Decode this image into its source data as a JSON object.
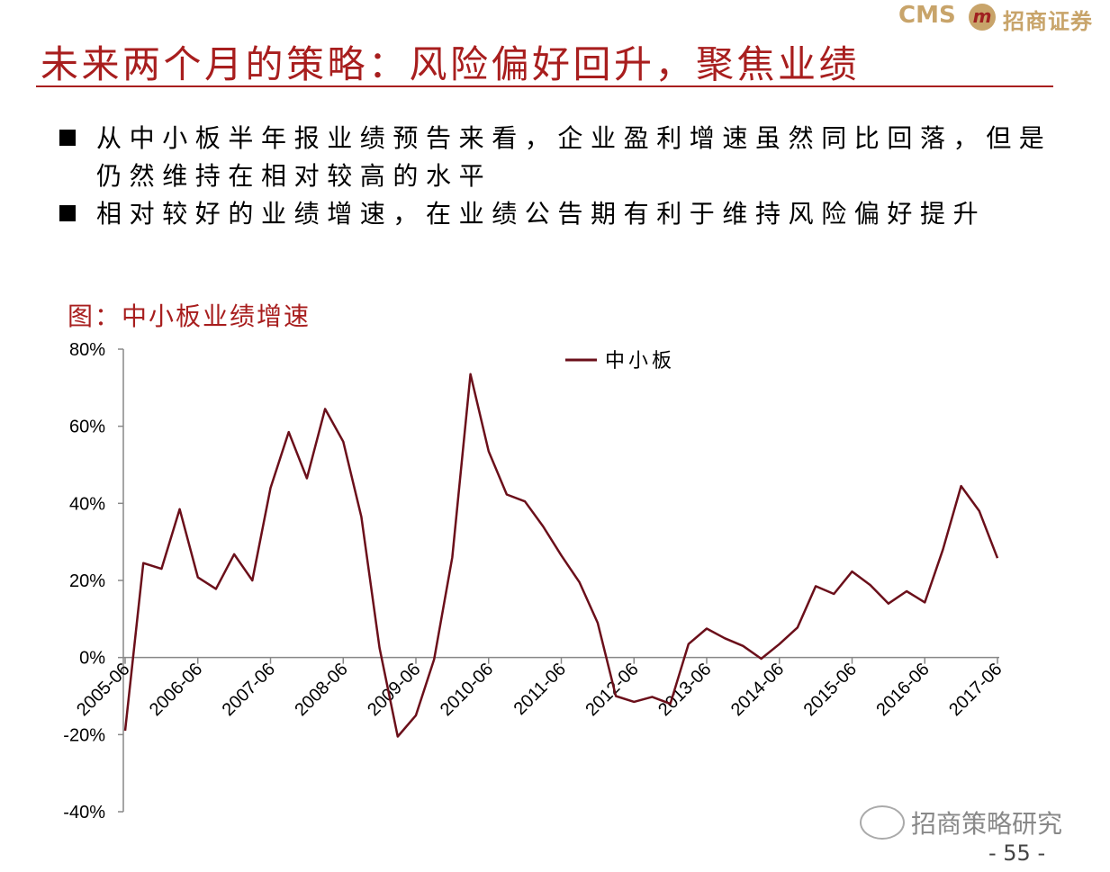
{
  "header": {
    "logo_text": "CMS",
    "logo_icon": "m",
    "company": "招商证券",
    "title": "未来两个月的策略：风险偏好回升，聚焦业绩"
  },
  "bullets": [
    "从中小板半年报业绩预告来看，企业盈利增速虽然同比回落，但是仍然维持在相对较高的水平",
    "相对较好的业绩增速，在业绩公告期有利于维持风险偏好提升"
  ],
  "chart_data": {
    "type": "line",
    "title": "图：中小板业绩增速",
    "categories": [
      "2005-06",
      null,
      null,
      null,
      "2006-06",
      null,
      null,
      null,
      "2007-06",
      null,
      null,
      null,
      "2008-06",
      null,
      null,
      null,
      "2009-06",
      null,
      null,
      null,
      "2010-06",
      null,
      null,
      null,
      "2011-06",
      null,
      null,
      null,
      "2012-06",
      null,
      null,
      null,
      "2013-06",
      null,
      null,
      null,
      "2014-06",
      null,
      null,
      null,
      "2015-06",
      null,
      null,
      null,
      "2016-06",
      null,
      null,
      null,
      "2017-06"
    ],
    "series": [
      {
        "name": "中小板",
        "color": "#6b0f1a",
        "values": [
          -19,
          24.5,
          23,
          38.5,
          20.8,
          17.8,
          26.8,
          20,
          44,
          58.5,
          46.5,
          64.5,
          56,
          36.5,
          2.5,
          -20.5,
          -15,
          -0.5,
          26,
          73.5,
          53.5,
          42.3,
          40.5,
          34,
          26.5,
          19.5,
          9,
          -10,
          -11.5,
          -10.2,
          -12,
          3.5,
          7.5,
          5,
          3,
          -0.3,
          3.5,
          7.8,
          18.5,
          16.5,
          22.3,
          18.8,
          14,
          17.2,
          14.3,
          28,
          44.5,
          38,
          25.8
        ]
      }
    ],
    "ylim": [
      -40,
      80
    ],
    "yticks": [
      {
        "value": -40,
        "label": "-40%"
      },
      {
        "value": -20,
        "label": "-20%"
      },
      {
        "value": 0,
        "label": "0%"
      },
      {
        "value": 20,
        "label": "20%"
      },
      {
        "value": 40,
        "label": "40%"
      },
      {
        "value": 60,
        "label": "60%"
      },
      {
        "value": 80,
        "label": "80%"
      }
    ],
    "grid": false,
    "legend": "top"
  },
  "footer": {
    "watermark": "招商策略研究",
    "page": "- 55 -"
  }
}
